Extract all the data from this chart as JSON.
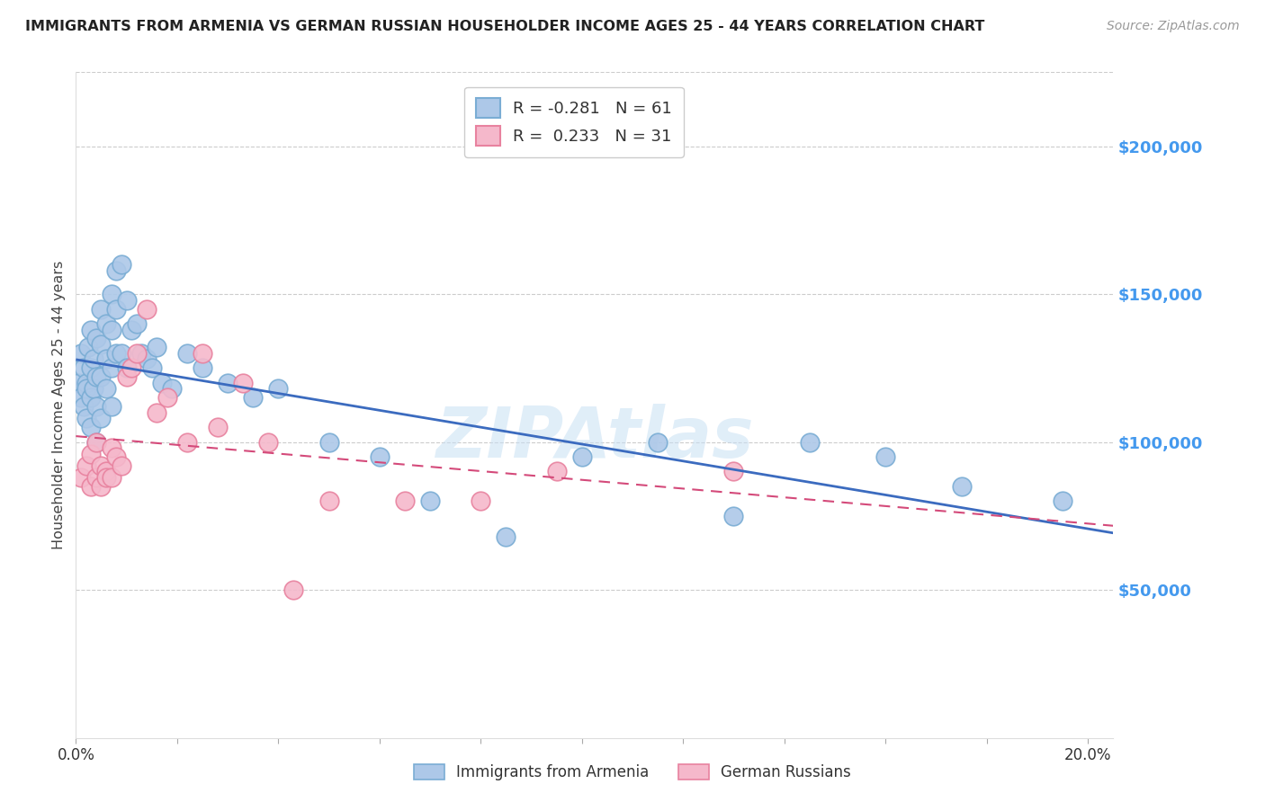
{
  "title": "IMMIGRANTS FROM ARMENIA VS GERMAN RUSSIAN HOUSEHOLDER INCOME AGES 25 - 44 YEARS CORRELATION CHART",
  "source": "Source: ZipAtlas.com",
  "ylabel": "Householder Income Ages 25 - 44 years",
  "xlim": [
    0.0,
    0.205
  ],
  "ylim": [
    0,
    225000
  ],
  "xticks": [
    0.0,
    0.02,
    0.04,
    0.06,
    0.08,
    0.1,
    0.12,
    0.14,
    0.16,
    0.18,
    0.2
  ],
  "xticklabels": [
    "0.0%",
    "",
    "",
    "",
    "",
    "",
    "",
    "",
    "",
    "",
    "20.0%"
  ],
  "ytick_labels_right": [
    "$50,000",
    "$100,000",
    "$150,000",
    "$200,000"
  ],
  "ytick_vals_right": [
    50000,
    100000,
    150000,
    200000
  ],
  "armenia_color": "#adc8e8",
  "armenia_edge_color": "#7aadd4",
  "german_color": "#f5b8cb",
  "german_edge_color": "#e8829f",
  "armenia_line_color": "#3b6bbf",
  "german_line_color": "#d44a7a",
  "watermark": "ZIPAtlas",
  "legend_R1": "-0.281",
  "legend_N1": "61",
  "legend_R2": "0.233",
  "legend_N2": "31",
  "legend_label1": "Immigrants from Armenia",
  "legend_label2": "German Russians",
  "armenia_x": [
    0.0005,
    0.001,
    0.001,
    0.0015,
    0.0015,
    0.002,
    0.002,
    0.002,
    0.0025,
    0.003,
    0.003,
    0.003,
    0.003,
    0.0035,
    0.0035,
    0.004,
    0.004,
    0.004,
    0.004,
    0.005,
    0.005,
    0.005,
    0.005,
    0.006,
    0.006,
    0.006,
    0.007,
    0.007,
    0.007,
    0.007,
    0.008,
    0.008,
    0.008,
    0.009,
    0.009,
    0.01,
    0.01,
    0.011,
    0.012,
    0.013,
    0.014,
    0.015,
    0.016,
    0.017,
    0.019,
    0.022,
    0.025,
    0.03,
    0.035,
    0.04,
    0.05,
    0.06,
    0.07,
    0.085,
    0.1,
    0.115,
    0.13,
    0.145,
    0.16,
    0.175,
    0.195
  ],
  "armenia_y": [
    120000,
    130000,
    115000,
    125000,
    112000,
    120000,
    108000,
    118000,
    132000,
    138000,
    125000,
    115000,
    105000,
    128000,
    118000,
    135000,
    122000,
    112000,
    100000,
    145000,
    133000,
    122000,
    108000,
    140000,
    128000,
    118000,
    150000,
    138000,
    125000,
    112000,
    158000,
    145000,
    130000,
    160000,
    130000,
    148000,
    125000,
    138000,
    140000,
    130000,
    128000,
    125000,
    132000,
    120000,
    118000,
    130000,
    125000,
    120000,
    115000,
    118000,
    100000,
    95000,
    80000,
    68000,
    95000,
    100000,
    75000,
    100000,
    95000,
    85000,
    80000
  ],
  "german_x": [
    0.001,
    0.002,
    0.003,
    0.003,
    0.004,
    0.004,
    0.005,
    0.005,
    0.006,
    0.006,
    0.007,
    0.007,
    0.008,
    0.009,
    0.01,
    0.011,
    0.012,
    0.014,
    0.016,
    0.018,
    0.022,
    0.025,
    0.028,
    0.033,
    0.038,
    0.043,
    0.05,
    0.065,
    0.08,
    0.095,
    0.13
  ],
  "german_y": [
    88000,
    92000,
    96000,
    85000,
    100000,
    88000,
    92000,
    85000,
    90000,
    88000,
    98000,
    88000,
    95000,
    92000,
    122000,
    125000,
    130000,
    145000,
    110000,
    115000,
    100000,
    130000,
    105000,
    120000,
    100000,
    50000,
    80000,
    80000,
    80000,
    90000,
    90000
  ]
}
